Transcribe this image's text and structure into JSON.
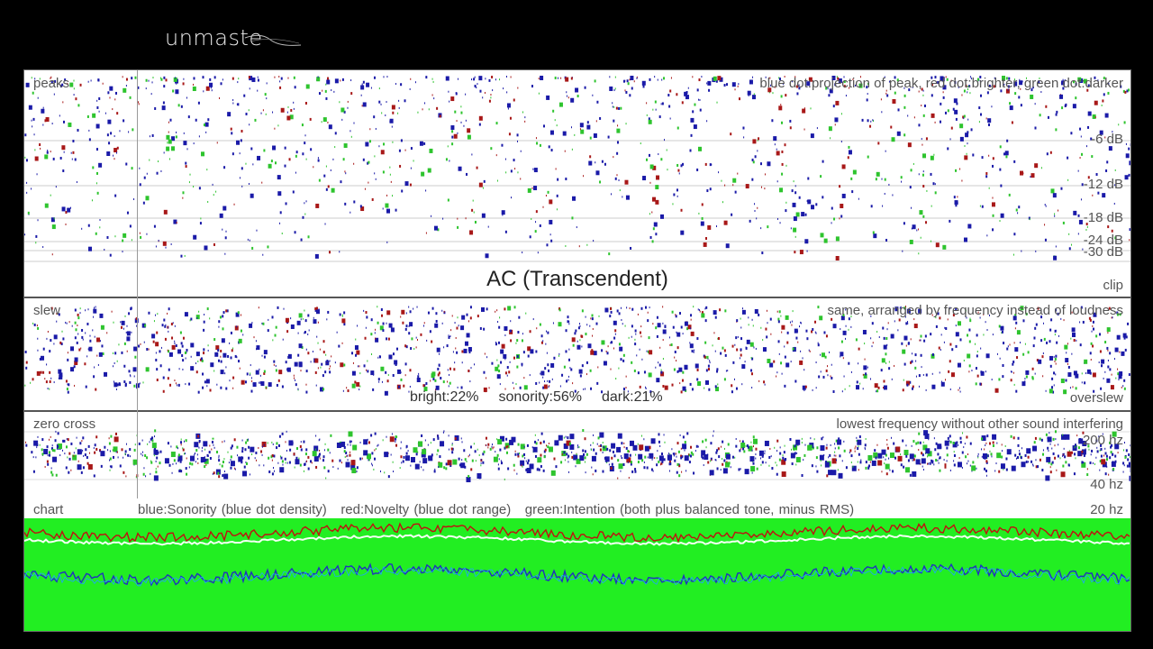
{
  "brand": {
    "logo_text": "unmaste"
  },
  "peaks": {
    "label": "peaks",
    "legend": "blue dot:projection of peak, red dot:brighter, green dot:darker",
    "db_ticks": [
      "-6 dB",
      "-12 dB",
      "-18 dB",
      "-24 dB",
      "-30 dB"
    ]
  },
  "track_title": "AC (Transcendent)",
  "clip_label": "clip",
  "slew": {
    "label": "slew",
    "legend": "same, arranged by frequency instead of loudness",
    "overslew_label": "overslew"
  },
  "stats": {
    "bright": "bright:22%",
    "sonority": "sonority:56%",
    "dark": "dark:21%"
  },
  "zero_cross": {
    "label": "zero cross",
    "legend": "lowest frequency without other sound interfering",
    "hz_ticks": [
      "200 hz",
      "40 hz",
      "20 hz"
    ]
  },
  "chart": {
    "label": "chart",
    "legend_blue": "blue:Sonority (blue dot density)",
    "legend_red": "red:Novelty (blue dot range)",
    "legend_green": "green:Intention (both plus balanced tone, minus RMS)"
  },
  "colors": {
    "blue": "#1a1aa8",
    "red": "#a81818",
    "green": "#2ec42e",
    "chart_bg": "#22ee22"
  }
}
